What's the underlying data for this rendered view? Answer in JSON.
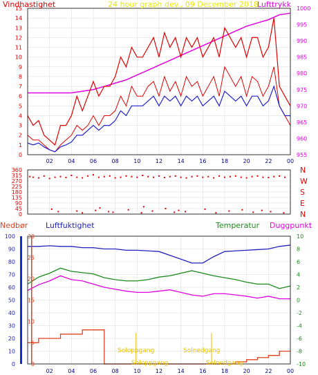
{
  "title": "24 hour graph dev., 09 December 2018",
  "colors": {
    "wind": "#e00000",
    "pressure": "#e000e0",
    "windspeed_avg": "#2020d0",
    "humidity": "#2020c0",
    "temperature": "#1a8a1a",
    "dewpoint": "#e000e0",
    "rain": "#e04020",
    "title": "#e8e800",
    "sun": "#e8c000",
    "grid": "#d8d8d8",
    "frame": "#000000",
    "rain_axis": "#1030d0"
  },
  "labels": {
    "wind": "Vindhastighet",
    "pressure": "Lufttrykk",
    "rain": "Nedbør",
    "humidity": "Luftfuktighet",
    "temperature": "Temperatur",
    "dewpoint": "Duggpunkt",
    "sunrise": "Soloppgang",
    "sunset": "Solnedgang",
    "directions": [
      "N",
      "W",
      "S",
      "E",
      "N"
    ]
  },
  "x_ticks": [
    "02",
    "04",
    "06",
    "08",
    "10",
    "12",
    "14",
    "16",
    "18",
    "20",
    "22",
    "00"
  ],
  "chart_data": [
    {
      "type": "line",
      "name": "wind-pressure",
      "x_range_hours": [
        0,
        24
      ],
      "ylim_left": [
        0,
        15
      ],
      "left_ticks": [
        "0",
        "1",
        "2",
        "3",
        "4",
        "5",
        "6",
        "7",
        "8",
        "9",
        "10",
        "11",
        "12",
        "13",
        "14",
        "15"
      ],
      "ylim_right": [
        955,
        1000
      ],
      "right_ticks": [
        "955",
        "960",
        "965",
        "970",
        "975",
        "980",
        "985",
        "990",
        "995",
        "1000"
      ],
      "series": [
        {
          "name": "Vindhastighet",
          "axis": "left",
          "note": "gust",
          "x": [
            0,
            0.5,
            1,
            1.5,
            2,
            2.5,
            3,
            3.5,
            4,
            4.5,
            5,
            5.5,
            6,
            6.5,
            7,
            7.5,
            8,
            8.5,
            9,
            9.5,
            10,
            10.5,
            11,
            11.5,
            12,
            12.5,
            13,
            13.5,
            14,
            14.5,
            15,
            15.5,
            16,
            16.5,
            17,
            17.5,
            18,
            18.5,
            19,
            19.5,
            20,
            20.5,
            21,
            21.5,
            22,
            22.5,
            23,
            23.5,
            24
          ],
          "values": [
            4,
            3,
            3.5,
            2,
            1.5,
            1,
            3,
            3,
            4,
            6,
            4.5,
            6,
            7.5,
            6,
            7,
            7,
            8,
            10,
            9,
            11,
            10,
            10,
            11,
            12,
            10,
            12.5,
            11,
            12,
            10,
            12,
            11,
            12,
            10,
            11,
            12,
            10,
            13,
            12,
            11,
            12,
            10,
            12,
            12,
            10,
            11,
            14,
            7,
            6,
            5
          ]
        },
        {
          "name": "Vindhastighet",
          "axis": "left",
          "note": "mean",
          "x": [
            0,
            0.5,
            1,
            1.5,
            2,
            2.5,
            3,
            3.5,
            4,
            4.5,
            5,
            5.5,
            6,
            6.5,
            7,
            7.5,
            8,
            8.5,
            9,
            9.5,
            10,
            10.5,
            11,
            11.5,
            12,
            12.5,
            13,
            13.5,
            14,
            14.5,
            15,
            15.5,
            16,
            16.5,
            17,
            17.5,
            18,
            18.5,
            19,
            19.5,
            20,
            20.5,
            21,
            21.5,
            22,
            22.5,
            23,
            23.5,
            24
          ],
          "values": [
            2,
            1.5,
            1.5,
            1,
            0.5,
            0.3,
            1,
            1.5,
            2,
            3,
            2.5,
            3,
            4,
            3,
            4,
            4,
            4.5,
            6,
            5,
            7,
            6,
            6,
            7,
            7.5,
            6,
            8,
            6.5,
            7.5,
            6,
            8,
            7,
            7.5,
            6,
            7,
            8,
            6,
            9,
            8,
            7,
            8,
            6,
            8,
            7.5,
            6,
            7,
            9,
            5,
            4,
            3
          ]
        },
        {
          "name": "windspeed-avg",
          "axis": "left",
          "note": "blue",
          "x": [
            0,
            0.5,
            1,
            1.5,
            2,
            2.5,
            3,
            3.5,
            4,
            4.5,
            5,
            5.5,
            6,
            6.5,
            7,
            7.5,
            8,
            8.5,
            9,
            9.5,
            10,
            10.5,
            11,
            11.5,
            12,
            12.5,
            13,
            13.5,
            14,
            14.5,
            15,
            15.5,
            16,
            16.5,
            17,
            17.5,
            18,
            18.5,
            19,
            19.5,
            20,
            20.5,
            21,
            21.5,
            22,
            22.5,
            23,
            23.5,
            24
          ],
          "values": [
            1.2,
            1,
            1.2,
            0.8,
            0.5,
            0.3,
            0.8,
            1,
            1.3,
            2,
            2,
            2.5,
            3,
            2.5,
            3,
            3,
            3.5,
            4.5,
            4,
            5,
            5,
            5,
            5.5,
            6,
            5,
            6,
            5.5,
            6,
            5,
            6,
            5.5,
            6,
            5,
            5.5,
            6,
            5,
            6.5,
            6,
            5.5,
            6,
            5,
            6,
            6,
            5,
            5.5,
            7,
            5,
            4,
            4
          ]
        },
        {
          "name": "Lufttrykk",
          "axis": "right",
          "x": [
            0,
            1,
            2,
            3,
            4,
            5,
            6,
            7,
            8,
            9,
            10,
            11,
            12,
            13,
            14,
            15,
            16,
            17,
            18,
            19,
            20,
            21,
            22,
            23,
            24
          ],
          "values": [
            974,
            974,
            974,
            974,
            974,
            974.5,
            975,
            976,
            977,
            978,
            979.5,
            981,
            982.5,
            984,
            985.5,
            987,
            988.5,
            990,
            991.5,
            993,
            994.5,
            995.5,
            996.5,
            998,
            998.5
          ]
        }
      ]
    },
    {
      "type": "scatter",
      "name": "wind-direction",
      "x_range_hours": [
        0,
        24
      ],
      "ylim": [
        0,
        360
      ],
      "ticks": [
        "0",
        "45",
        "90",
        "135",
        "180",
        "225",
        "270",
        "315",
        "360"
      ],
      "series": [
        {
          "name": "direction",
          "x": [
            0.2,
            0.5,
            1,
            1.5,
            2,
            2.5,
            3,
            3.5,
            4,
            4.5,
            5,
            5.5,
            6,
            6.5,
            7,
            7.5,
            8,
            8.5,
            9,
            9.5,
            10,
            10.5,
            11,
            11.5,
            12,
            12.5,
            13,
            13.5,
            14,
            14.5,
            15,
            15.5,
            16,
            16.5,
            17,
            17.5,
            18,
            18.5,
            19,
            19.5,
            20,
            20.5,
            21,
            21.5,
            22,
            22.5,
            23,
            23.5
          ],
          "values": [
            305,
            300,
            295,
            310,
            290,
            300,
            305,
            298,
            315,
            300,
            295,
            310,
            320,
            300,
            305,
            310,
            295,
            300,
            310,
            305,
            300,
            315,
            305,
            300,
            310,
            298,
            305,
            310,
            300,
            295,
            305,
            310,
            300,
            305,
            295,
            310,
            300,
            305,
            310,
            300,
            295,
            305,
            310,
            300,
            298,
            305,
            310,
            300
          ]
        },
        {
          "name": "direction-low",
          "x": [
            2.2,
            2.8,
            4.5,
            5,
            6.2,
            6.6,
            7.4,
            7.8,
            9.2,
            10.4,
            10.6,
            11.4,
            12.6,
            13.4,
            13.8,
            14.4,
            16.2,
            17.2,
            18.4,
            19.6,
            20.6,
            21.4,
            22.2,
            23.4
          ],
          "values": [
            40,
            20,
            25,
            10,
            30,
            50,
            20,
            15,
            35,
            10,
            60,
            25,
            45,
            15,
            30,
            20,
            40,
            10,
            25,
            35,
            15,
            30,
            20,
            10
          ]
        }
      ]
    },
    {
      "type": "line",
      "name": "humidity-temperature-rain",
      "x_range_hours": [
        0,
        24
      ],
      "ylim_humidity": [
        0,
        100
      ],
      "humidity_ticks": [
        "0",
        "10",
        "20",
        "30",
        "40",
        "50",
        "60",
        "70",
        "80",
        "90",
        "100"
      ],
      "ylim_rain": [
        0,
        30
      ],
      "rain_ticks": [
        "0",
        "5",
        "10",
        "15",
        "20",
        "25",
        "30"
      ],
      "ylim_temp": [
        -10,
        10
      ],
      "temp_ticks": [
        "-10",
        "-8",
        "-6",
        "-4",
        "-2",
        "0",
        "2",
        "4",
        "6",
        "8",
        "10"
      ],
      "sunrise_hour": 9.9,
      "sunset_hour": 16.8,
      "series": [
        {
          "name": "Luftfuktighet",
          "axis": "humidity",
          "x": [
            0,
            1,
            2,
            3,
            4,
            5,
            6,
            7,
            8,
            9,
            10,
            11,
            12,
            13,
            14,
            15,
            16,
            17,
            18,
            19,
            20,
            21,
            22,
            23,
            24
          ],
          "values": [
            92,
            92,
            92.5,
            92,
            92,
            91,
            91,
            90,
            90,
            89,
            89,
            88.5,
            88,
            85,
            82,
            79,
            79,
            84,
            88,
            88.5,
            89,
            89.5,
            90,
            92,
            93
          ]
        },
        {
          "name": "Temperatur",
          "axis": "temp",
          "x": [
            0,
            1,
            2,
            3,
            4,
            5,
            6,
            7,
            8,
            9,
            10,
            11,
            12,
            13,
            14,
            15,
            16,
            17,
            18,
            19,
            20,
            21,
            22,
            23,
            24
          ],
          "values": [
            2.5,
            3.6,
            4.2,
            5.0,
            4.5,
            4.3,
            4.1,
            3.5,
            3.2,
            3.0,
            3.0,
            3.2,
            3.6,
            3.8,
            4.2,
            4.6,
            4.2,
            3.8,
            3.5,
            3.2,
            2.8,
            2.5,
            2.5,
            1.8,
            2.2
          ]
        },
        {
          "name": "Duggpunkt",
          "axis": "temp",
          "x": [
            0,
            1,
            2,
            3,
            4,
            5,
            6,
            7,
            8,
            9,
            10,
            11,
            12,
            13,
            14,
            15,
            16,
            17,
            18,
            19,
            20,
            21,
            22,
            23,
            24
          ],
          "values": [
            1.5,
            2.4,
            3.0,
            3.8,
            3.2,
            3.0,
            2.5,
            2.0,
            1.7,
            1.4,
            1.2,
            1.2,
            1.4,
            1.6,
            1.2,
            0.8,
            0.6,
            1.0,
            1.0,
            0.8,
            0.6,
            0.3,
            0.6,
            0.2,
            0.2
          ]
        },
        {
          "name": "Nedbør",
          "axis": "rain",
          "step": true,
          "x": [
            0,
            1,
            2,
            3,
            4,
            5,
            6,
            7,
            8,
            9,
            10,
            11,
            12,
            13,
            14,
            15,
            16,
            17,
            18,
            19,
            20,
            21,
            22,
            23,
            24
          ],
          "values": [
            5,
            6,
            6,
            7,
            7,
            8,
            8,
            0,
            0,
            0,
            0,
            0,
            0,
            0,
            0,
            0,
            0,
            0,
            0,
            0.5,
            1,
            1.5,
            2,
            3,
            3
          ]
        }
      ]
    }
  ]
}
